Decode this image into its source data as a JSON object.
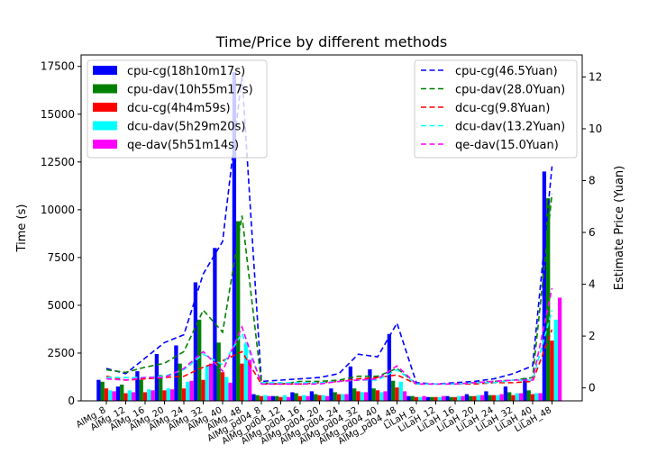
{
  "chart_data": {
    "type": "bar",
    "title": "Time/Price by different methods",
    "ylabel": "Time (s)",
    "y2label": "Estimate Price (Yuan)",
    "ylim": [
      0,
      18100
    ],
    "y2lim": [
      -0.5,
      12.85
    ],
    "yticks": [
      "0",
      "2500",
      "5000",
      "7500",
      "10000",
      "12500",
      "15000",
      "17500"
    ],
    "ytick_values": [
      0,
      2500,
      5000,
      7500,
      10000,
      12500,
      15000,
      17500
    ],
    "y2ticks": [
      "0",
      "2",
      "4",
      "6",
      "8",
      "10",
      "12"
    ],
    "y2tick_values": [
      0,
      2,
      4,
      6,
      8,
      10,
      12
    ],
    "categories": [
      "AlMg_8",
      "AlMg_12",
      "AlMg_16",
      "AlMg_20",
      "AlMg_24",
      "AlMg_32",
      "AlMg_40",
      "AlMg_48",
      "AlMg_pd04_8",
      "AlMg_pd04_12",
      "AlMg_pd04_16",
      "AlMg_pd04_20",
      "AlMg_pd04_24",
      "AlMg_pd04_32",
      "AlMg_pd04_40",
      "AlMg_pd04_48",
      "LiLaH_8",
      "LiLaH_12",
      "LiLaH_16",
      "LiLaH_20",
      "LiLaH_24",
      "LiLaH_32",
      "LiLaH_40",
      "LiLaH_48"
    ],
    "series": [
      {
        "name": "cpu-cg(18h10m17s)",
        "color": "#0000ff",
        "values": [
          1100,
          750,
          1550,
          2450,
          2900,
          6200,
          8000,
          17200,
          350,
          250,
          450,
          500,
          650,
          1800,
          1650,
          3500,
          250,
          200,
          250,
          350,
          500,
          750,
          1200,
          12000
        ]
      },
      {
        "name": "cpu-dav(10h55m17s)",
        "color": "#008000",
        "values": [
          1000,
          850,
          1100,
          1350,
          1950,
          4250,
          3050,
          9400,
          300,
          250,
          400,
          350,
          450,
          650,
          650,
          1050,
          250,
          200,
          200,
          250,
          300,
          450,
          550,
          10600
        ]
      },
      {
        "name": "dcu-cg(4h4m59s)",
        "color": "#ff0000",
        "values": [
          650,
          400,
          450,
          550,
          650,
          1100,
          1500,
          1950,
          250,
          200,
          250,
          300,
          350,
          500,
          550,
          700,
          200,
          200,
          200,
          250,
          300,
          300,
          350,
          3150
        ]
      },
      {
        "name": "dcu-dav(5h29m20s)",
        "color": "#00ffff",
        "values": [
          550,
          550,
          600,
          650,
          1000,
          1850,
          1250,
          3000,
          300,
          300,
          300,
          300,
          350,
          450,
          450,
          1000,
          200,
          200,
          250,
          300,
          300,
          400,
          400,
          4250
        ]
      },
      {
        "name": "qe-dav(5h51m14s)",
        "color": "#ff00ff",
        "values": [
          500,
          450,
          550,
          600,
          1050,
          1950,
          950,
          2150,
          250,
          200,
          250,
          250,
          350,
          450,
          500,
          500,
          250,
          250,
          250,
          300,
          350,
          400,
          400,
          5400
        ]
      }
    ],
    "lines": [
      {
        "name": "cpu-cg(46.5Yuan)",
        "color": "#0000ff",
        "values": [
          0.75,
          0.55,
          1.15,
          1.75,
          2.05,
          4.4,
          5.65,
          12.05,
          0.25,
          0.3,
          0.35,
          0.4,
          0.55,
          1.3,
          1.2,
          2.5,
          0.2,
          0.15,
          0.2,
          0.25,
          0.35,
          0.55,
          0.85,
          8.55
        ]
      },
      {
        "name": "cpu-dav(28.0Yuan)",
        "color": "#008000",
        "values": [
          0.7,
          0.6,
          0.8,
          0.95,
          1.4,
          3.0,
          2.15,
          6.65,
          0.2,
          0.15,
          0.25,
          0.25,
          0.3,
          0.45,
          0.45,
          0.75,
          0.15,
          0.15,
          0.15,
          0.2,
          0.25,
          0.3,
          0.4,
          7.5
        ]
      },
      {
        "name": "dcu-cg(9.8Yuan)",
        "color": "#ff0000",
        "values": [
          0.45,
          0.3,
          0.35,
          0.4,
          0.45,
          0.8,
          1.05,
          1.4,
          0.15,
          0.15,
          0.15,
          0.2,
          0.25,
          0.35,
          0.4,
          0.5,
          0.15,
          0.15,
          0.15,
          0.15,
          0.2,
          0.2,
          0.25,
          2.25
        ]
      },
      {
        "name": "dcu-dav(13.2Yuan)",
        "color": "#00ffff",
        "values": [
          0.4,
          0.4,
          0.4,
          0.45,
          0.7,
          1.3,
          0.9,
          2.1,
          0.2,
          0.2,
          0.2,
          0.2,
          0.25,
          0.3,
          0.3,
          0.7,
          0.15,
          0.15,
          0.15,
          0.2,
          0.2,
          0.3,
          0.3,
          3.0
        ]
      },
      {
        "name": "qe-dav(15.0Yuan)",
        "color": "#ff00ff",
        "values": [
          0.35,
          0.3,
          0.4,
          0.4,
          0.75,
          1.4,
          0.65,
          2.35,
          0.15,
          0.15,
          0.15,
          0.15,
          0.25,
          0.3,
          0.35,
          0.85,
          0.15,
          0.15,
          0.15,
          0.2,
          0.25,
          0.3,
          0.3,
          3.85
        ]
      }
    ],
    "legend_left_position": "upper-left",
    "legend_right_position": "upper-right",
    "grid": false
  }
}
